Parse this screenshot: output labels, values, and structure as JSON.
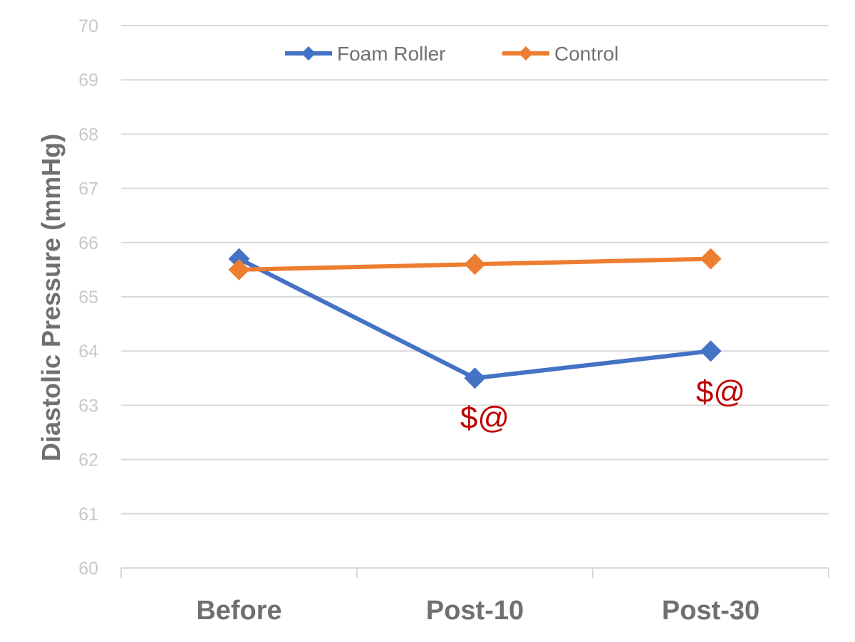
{
  "chart_data": {
    "type": "line",
    "title": "",
    "xlabel": "",
    "ylabel": "Diastolic Pressure (mmHg)",
    "categories": [
      "Before",
      "Post-10",
      "Post-30"
    ],
    "ylim": [
      60,
      70
    ],
    "yticks": [
      60,
      61,
      62,
      63,
      64,
      65,
      66,
      67,
      68,
      69,
      70
    ],
    "grid": true,
    "legend_position": "top-center",
    "series": [
      {
        "name": "Foam Roller",
        "color": "#4472c4",
        "values": [
          65.7,
          63.5,
          64.0
        ]
      },
      {
        "name": "Control",
        "color": "#ed7d31",
        "values": [
          65.5,
          65.6,
          65.7
        ]
      }
    ],
    "annotations": [
      {
        "category": "Post-10",
        "text": "$@",
        "color": "#c00000"
      },
      {
        "category": "Post-30",
        "text": "$@",
        "color": "#c00000"
      }
    ]
  }
}
